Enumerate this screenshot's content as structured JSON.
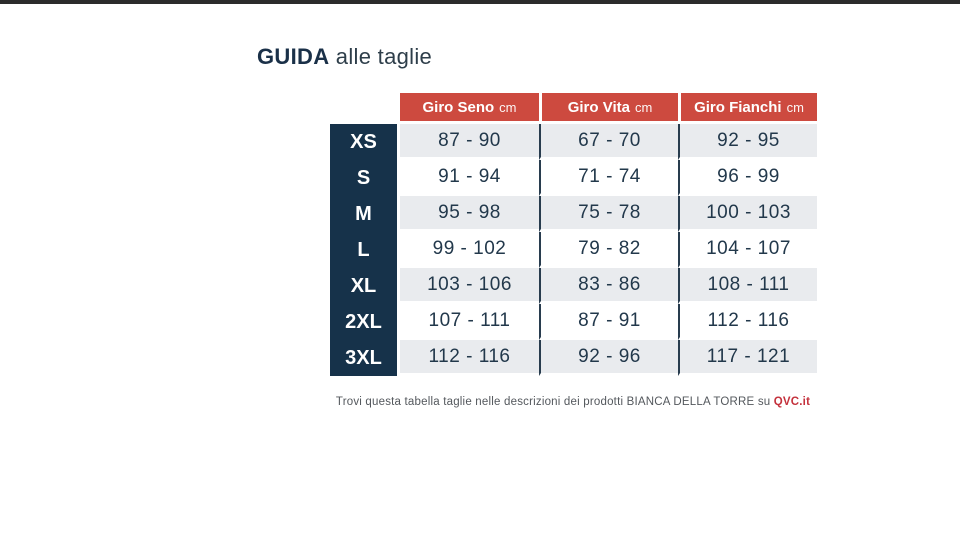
{
  "title": {
    "strong": "GUIDA",
    "rest": " alle taglie"
  },
  "table": {
    "columns": [
      {
        "name": "Giro Seno",
        "unit": "cm"
      },
      {
        "name": "Giro Vita",
        "unit": "cm"
      },
      {
        "name": "Giro Fianchi",
        "unit": "cm"
      }
    ],
    "rows": [
      {
        "size": "XS",
        "seno": "87 - 90",
        "vita": "67 - 70",
        "fianchi": "92 - 95"
      },
      {
        "size": "S",
        "seno": "91 - 94",
        "vita": "71 - 74",
        "fianchi": "96 - 99"
      },
      {
        "size": "M",
        "seno": "95 - 98",
        "vita": "75 - 78",
        "fianchi": "100 - 103"
      },
      {
        "size": "L",
        "seno": "99 - 102",
        "vita": "79 - 82",
        "fianchi": "104 - 107"
      },
      {
        "size": "XL",
        "seno": "103 - 106",
        "vita": "83 - 86",
        "fianchi": "108 - 111"
      },
      {
        "size": "2XL",
        "seno": "107 - 111",
        "vita": "87 - 91",
        "fianchi": "112 - 116"
      },
      {
        "size": "3XL",
        "seno": "112 - 116",
        "vita": "92 - 96",
        "fianchi": "117 - 121"
      }
    ]
  },
  "footer": {
    "text": "Trovi questa tabella taglie nelle descrizioni dei prodotti BIANCA DELLA TORRE su ",
    "link": "QVC.it"
  },
  "colors": {
    "header_bg": "#cd4a3f",
    "size_column_bg": "#16324a",
    "row_alt_bg": "#e9ebee",
    "cell_text": "#22384b",
    "divider": "#283c4e",
    "link_red": "#c4313c",
    "top_bar": "#2b2b2b"
  }
}
